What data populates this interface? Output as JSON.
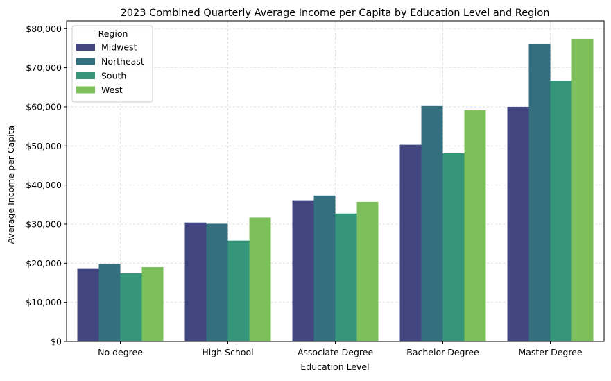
{
  "chart_data": {
    "type": "bar",
    "title": "2023 Combined Quarterly Average Income per Capita by Education Level and Region",
    "xlabel": "Education Level",
    "ylabel": "Average Income per Capita",
    "categories": [
      "No degree",
      "High School",
      "Associate Degree",
      "Bachelor Degree",
      "Master Degree"
    ],
    "ylim": [
      0,
      82000
    ],
    "yticks": [
      0,
      10000,
      20000,
      30000,
      40000,
      50000,
      60000,
      70000,
      80000
    ],
    "ytick_labels": [
      "$0",
      "$10,000",
      "$20,000",
      "$30,000",
      "$40,000",
      "$50,000",
      "$60,000",
      "$70,000",
      "$80,000"
    ],
    "grid": true,
    "legend": {
      "title": "Region",
      "placement": "top-left"
    },
    "series": [
      {
        "name": "Midwest",
        "color": "#414680",
        "values": [
          18700,
          30400,
          36100,
          50300,
          60000
        ]
      },
      {
        "name": "Northeast",
        "color": "#346f80",
        "values": [
          19800,
          30100,
          37300,
          60200,
          76000
        ]
      },
      {
        "name": "South",
        "color": "#35967a",
        "values": [
          17400,
          25800,
          32700,
          48100,
          66700
        ]
      },
      {
        "name": "West",
        "color": "#7dc05b",
        "values": [
          19000,
          31700,
          35700,
          59100,
          77400
        ]
      }
    ]
  }
}
